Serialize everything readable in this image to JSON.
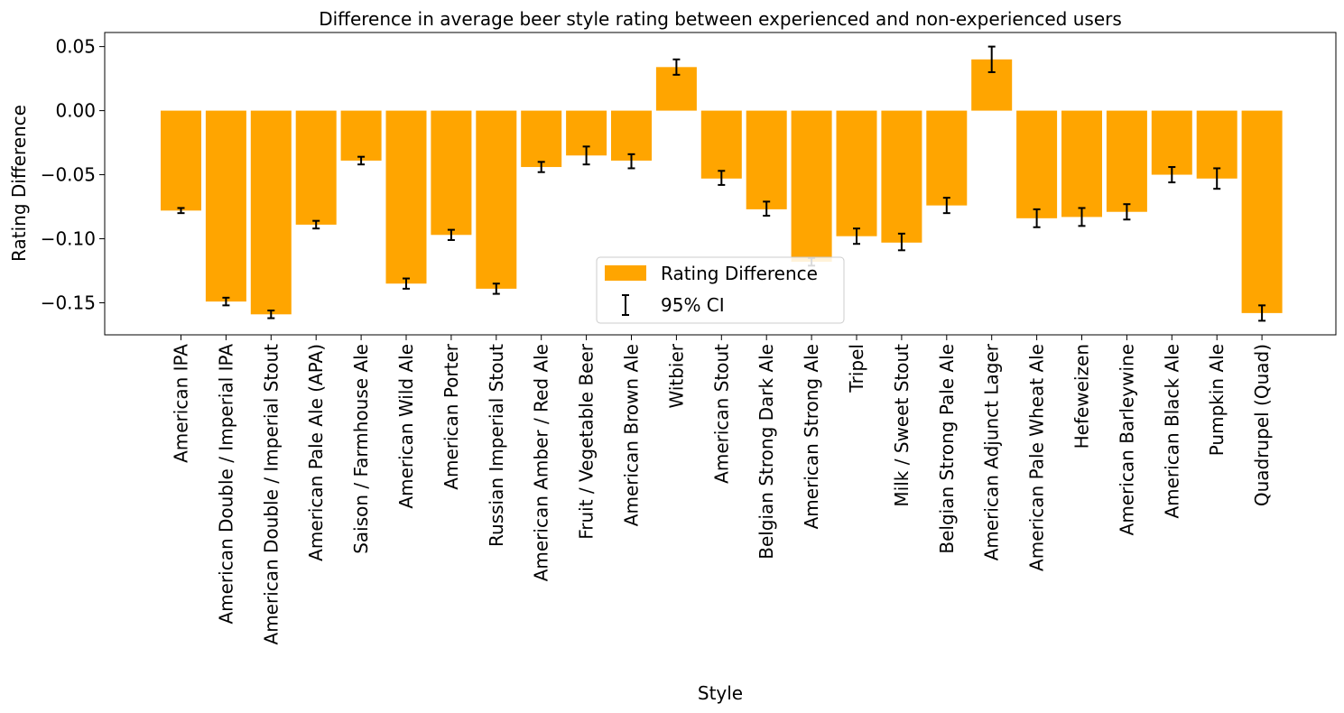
{
  "chart_data": {
    "type": "bar",
    "title": "Difference in average beer style rating between experienced and non-experienced users",
    "xlabel": "Style",
    "ylabel": "Rating Difference",
    "ylim": [
      -0.175,
      0.061
    ],
    "yticks": [
      0.05,
      0.0,
      -0.05,
      -0.1,
      -0.15
    ],
    "ytick_labels": [
      "0.05",
      "0.00",
      "−0.05",
      "−0.10",
      "−0.15"
    ],
    "grid": false,
    "legend": {
      "placement": "lower-center",
      "entries": [
        "Rating Difference",
        "95% CI"
      ]
    },
    "colors": {
      "bar": "#FFA500",
      "errorbar": "#000000"
    },
    "categories": [
      "American IPA",
      "American Double / Imperial IPA",
      "American Double / Imperial Stout",
      "American Pale Ale (APA)",
      "Saison / Farmhouse Ale",
      "American Wild Ale",
      "American Porter",
      "Russian Imperial Stout",
      "American Amber / Red Ale",
      "Fruit / Vegetable Beer",
      "American Brown Ale",
      "Witbier",
      "American Stout",
      "Belgian Strong Dark Ale",
      "American Strong Ale",
      "Tripel",
      "Milk / Sweet Stout",
      "Belgian Strong Pale Ale",
      "American Adjunct Lager",
      "American Pale Wheat Ale",
      "Hefeweizen",
      "American Barleywine",
      "American Black Ale",
      "Pumpkin Ale",
      "Quadrupel (Quad)"
    ],
    "series": [
      {
        "name": "Rating Difference",
        "values": [
          -0.078,
          -0.149,
          -0.159,
          -0.089,
          -0.039,
          -0.135,
          -0.097,
          -0.139,
          -0.044,
          -0.035,
          -0.039,
          0.034,
          -0.053,
          -0.077,
          -0.118,
          -0.098,
          -0.103,
          -0.074,
          0.04,
          -0.084,
          -0.083,
          -0.079,
          -0.05,
          -0.053,
          -0.158
        ],
        "ci_low": [
          -0.08,
          -0.152,
          -0.162,
          -0.092,
          -0.042,
          -0.139,
          -0.101,
          -0.143,
          -0.048,
          -0.042,
          -0.045,
          0.028,
          -0.058,
          -0.082,
          -0.121,
          -0.104,
          -0.109,
          -0.08,
          0.03,
          -0.091,
          -0.09,
          -0.085,
          -0.056,
          -0.061,
          -0.164
        ],
        "ci_high": [
          -0.076,
          -0.146,
          -0.156,
          -0.086,
          -0.036,
          -0.131,
          -0.093,
          -0.135,
          -0.04,
          -0.028,
          -0.034,
          0.04,
          -0.047,
          -0.071,
          -0.115,
          -0.092,
          -0.096,
          -0.068,
          0.05,
          -0.077,
          -0.076,
          -0.073,
          -0.044,
          -0.045,
          -0.152
        ]
      }
    ]
  }
}
